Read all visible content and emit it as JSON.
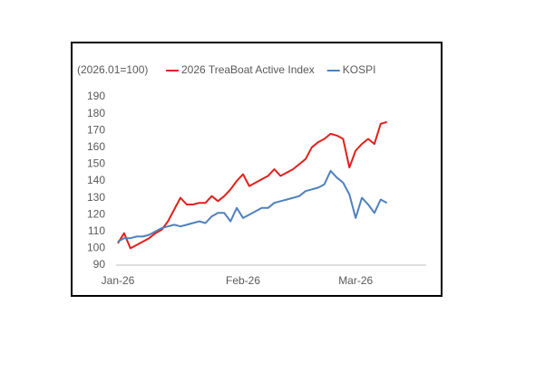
{
  "chart_data": {
    "type": "line",
    "unit_label": "(2026.01=100)",
    "categories": [
      "Jan-26",
      null,
      null,
      null,
      null,
      null,
      null,
      null,
      null,
      null,
      null,
      null,
      null,
      null,
      null,
      null,
      null,
      null,
      null,
      null,
      "Feb-26",
      null,
      null,
      null,
      null,
      null,
      null,
      null,
      null,
      null,
      null,
      null,
      null,
      null,
      null,
      null,
      null,
      null,
      "Mar-26",
      null,
      null,
      null,
      null,
      null
    ],
    "series": [
      {
        "name": "2026 TreaBoat Active Index",
        "color": "#e0201b",
        "values": [
          103,
          109,
          100,
          102,
          104,
          106,
          109,
          111,
          116,
          123,
          130,
          126,
          126,
          127,
          127,
          131,
          128,
          131,
          135,
          140,
          144,
          137,
          139,
          141,
          143,
          147,
          143,
          145,
          147,
          150,
          153,
          160,
          163,
          165,
          168,
          167,
          165,
          148,
          158,
          162,
          165,
          162,
          174,
          175
        ]
      },
      {
        "name": "KOSPI",
        "color": "#4f81bd",
        "values": [
          104,
          106,
          106,
          107,
          107,
          108,
          110,
          112,
          113,
          114,
          113,
          114,
          115,
          116,
          115,
          119,
          121,
          121,
          116,
          124,
          118,
          120,
          122,
          124,
          124,
          127,
          128,
          129,
          130,
          131,
          134,
          135,
          136,
          138,
          146,
          142,
          139,
          132,
          118,
          130,
          126,
          121,
          129,
          127
        ]
      }
    ],
    "ylim": [
      90,
      190
    ],
    "yticks": [
      90,
      100,
      110,
      120,
      130,
      140,
      150,
      160,
      170,
      180,
      190
    ],
    "grid": false,
    "legend": "top"
  }
}
